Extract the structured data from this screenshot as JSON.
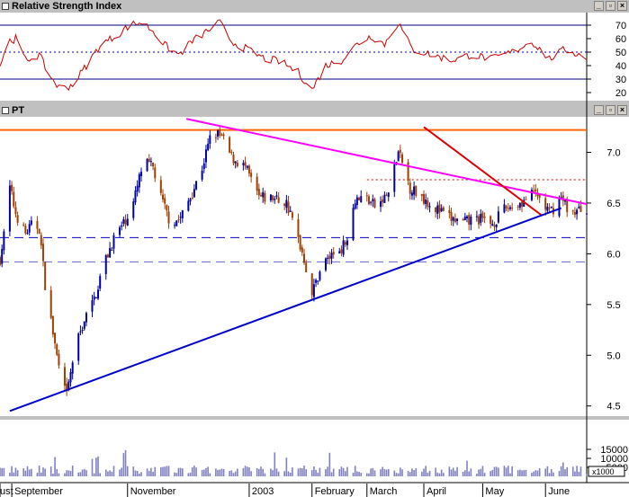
{
  "rsi_panel": {
    "title": "Relative Strength Index",
    "axis_labels": [
      "70",
      "60",
      "50",
      "40",
      "30",
      "20"
    ],
    "levels": [
      70,
      60,
      50,
      40,
      30,
      20
    ]
  },
  "price_panel": {
    "title": "PT",
    "axis_labels": [
      "7.0",
      "6.5",
      "6.0",
      "5.5",
      "5.0",
      "4.5"
    ],
    "levels": [
      7.0,
      6.5,
      6.0,
      5.5,
      5.0,
      4.5
    ]
  },
  "volume_panel": {
    "axis_labels": [
      "15000",
      "10000",
      "5000"
    ],
    "levels": [
      15000,
      10000,
      5000
    ],
    "multiplier_label": "x1000"
  },
  "date_axis": {
    "labels": [
      "ust",
      "September",
      "November",
      "2003",
      "February",
      "March",
      "April",
      "May",
      "June"
    ]
  },
  "colors": {
    "rsi_line": "#cc0000",
    "up_candle": "#0000a0",
    "down_candle": "#a04000",
    "resistance_line": "#ff6600",
    "long_downtrend": "#ff00ff",
    "short_downtrend": "#dd0000",
    "uptrend": "#0000cc",
    "support_dashed": "#0000cc",
    "volume_bars": "#8080c0"
  },
  "chart_data": {
    "type": "candlestick",
    "title": "PT",
    "x_range": [
      "2002-08-28",
      "2003-06-23"
    ],
    "price_range": [
      4.4,
      7.35
    ],
    "reference_lines": {
      "resistance": 7.22,
      "dotted_resistance": 6.73,
      "support_upper": 6.16,
      "support_lower": 5.92
    },
    "trendlines": [
      {
        "name": "long downtrend",
        "from": [
          "2002-12-01",
          7.33
        ],
        "to": [
          "2003-06-23",
          6.49
        ]
      },
      {
        "name": "short downtrend",
        "from": [
          "2003-04-01",
          7.25
        ],
        "to": [
          "2003-05-31",
          6.38
        ]
      },
      {
        "name": "uptrend",
        "from": [
          "2002-09-02",
          4.45
        ],
        "to": [
          "2003-06-10",
          6.45
        ]
      }
    ],
    "price_path": [
      [
        "2002-08-28",
        5.95
      ],
      [
        "2002-08-31",
        6.3
      ],
      [
        "2002-09-02",
        6.65
      ],
      [
        "2002-09-05",
        6.4
      ],
      [
        "2002-09-10",
        6.2
      ],
      [
        "2002-09-14",
        6.3
      ],
      [
        "2002-09-17",
        6.25
      ],
      [
        "2002-09-20",
        5.7
      ],
      [
        "2002-09-25",
        5.1
      ],
      [
        "2002-09-28",
        4.75
      ],
      [
        "2002-10-01",
        4.6
      ],
      [
        "2002-10-05",
        5.05
      ],
      [
        "2002-10-10",
        5.35
      ],
      [
        "2002-10-15",
        5.55
      ],
      [
        "2002-10-20",
        5.9
      ],
      [
        "2002-10-25",
        6.15
      ],
      [
        "2002-10-30",
        6.3
      ],
      [
        "2002-11-04",
        6.5
      ],
      [
        "2002-11-09",
        6.9
      ],
      [
        "2002-11-14",
        6.85
      ],
      [
        "2002-11-18",
        6.55
      ],
      [
        "2002-11-23",
        6.3
      ],
      [
        "2002-11-28",
        6.35
      ],
      [
        "2002-12-04",
        6.6
      ],
      [
        "2002-12-09",
        6.85
      ],
      [
        "2002-12-14",
        7.2
      ],
      [
        "2002-12-19",
        7.15
      ],
      [
        "2002-12-24",
        6.95
      ],
      [
        "2002-12-31",
        6.85
      ],
      [
        "2003-01-07",
        6.55
      ],
      [
        "2003-01-14",
        6.55
      ],
      [
        "2003-01-21",
        6.5
      ],
      [
        "2003-01-27",
        6.15
      ],
      [
        "2003-01-30",
        5.95
      ],
      [
        "2003-02-03",
        5.6
      ],
      [
        "2003-02-08",
        5.9
      ],
      [
        "2003-02-14",
        6.0
      ],
      [
        "2003-02-20",
        6.1
      ],
      [
        "2003-02-25",
        6.55
      ],
      [
        "2003-03-03",
        6.55
      ],
      [
        "2003-03-08",
        6.45
      ],
      [
        "2003-03-14",
        6.6
      ],
      [
        "2003-03-19",
        7.0
      ],
      [
        "2003-03-25",
        6.65
      ],
      [
        "2003-04-01",
        6.55
      ],
      [
        "2003-04-07",
        6.45
      ],
      [
        "2003-04-14",
        6.35
      ],
      [
        "2003-04-21",
        6.3
      ],
      [
        "2003-04-28",
        6.35
      ],
      [
        "2003-05-06",
        6.3
      ],
      [
        "2003-05-13",
        6.45
      ],
      [
        "2003-05-20",
        6.5
      ],
      [
        "2003-05-28",
        6.6
      ],
      [
        "2003-06-04",
        6.4
      ],
      [
        "2003-06-10",
        6.55
      ],
      [
        "2003-06-15",
        6.4
      ],
      [
        "2003-06-23",
        6.45
      ]
    ],
    "rsi_path": [
      [
        "2002-08-28",
        40
      ],
      [
        "2002-09-01",
        58
      ],
      [
        "2002-09-05",
        60
      ],
      [
        "2002-09-10",
        44
      ],
      [
        "2002-09-17",
        48
      ],
      [
        "2002-09-22",
        33
      ],
      [
        "2002-09-28",
        22
      ],
      [
        "2002-10-04",
        26
      ],
      [
        "2002-10-10",
        38
      ],
      [
        "2002-10-18",
        55
      ],
      [
        "2002-10-26",
        62
      ],
      [
        "2002-11-02",
        70
      ],
      [
        "2002-11-08",
        72
      ],
      [
        "2002-11-14",
        66
      ],
      [
        "2002-11-20",
        55
      ],
      [
        "2002-11-27",
        48
      ],
      [
        "2002-12-04",
        58
      ],
      [
        "2002-12-12",
        66
      ],
      [
        "2002-12-18",
        72
      ],
      [
        "2002-12-24",
        58
      ],
      [
        "2003-01-01",
        52
      ],
      [
        "2003-01-10",
        45
      ],
      [
        "2003-01-18",
        43
      ],
      [
        "2003-01-27",
        35
      ],
      [
        "2003-02-03",
        22
      ],
      [
        "2003-02-10",
        40
      ],
      [
        "2003-02-18",
        44
      ],
      [
        "2003-02-26",
        56
      ],
      [
        "2003-03-05",
        62
      ],
      [
        "2003-03-12",
        56
      ],
      [
        "2003-03-19",
        72
      ],
      [
        "2003-03-26",
        52
      ],
      [
        "2003-04-05",
        48
      ],
      [
        "2003-04-15",
        44
      ],
      [
        "2003-04-25",
        48
      ],
      [
        "2003-05-06",
        45
      ],
      [
        "2003-05-16",
        50
      ],
      [
        "2003-05-26",
        58
      ],
      [
        "2003-06-04",
        45
      ],
      [
        "2003-06-12",
        52
      ],
      [
        "2003-06-23",
        46
      ]
    ]
  }
}
